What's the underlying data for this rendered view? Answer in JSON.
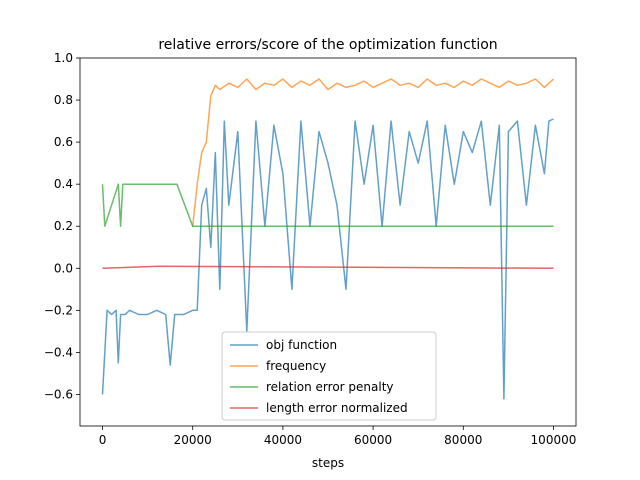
{
  "chart_data": {
    "type": "line",
    "title": "relative errors/score of the optimization function",
    "xlabel": "steps",
    "ylabel": "",
    "xlim": [
      -5000,
      105000
    ],
    "ylim": [
      -0.75,
      1.0
    ],
    "x_ticks": [
      0,
      20000,
      40000,
      60000,
      80000,
      100000
    ],
    "x_tick_labels": [
      "0",
      "20000",
      "40000",
      "60000",
      "80000",
      "100000"
    ],
    "y_ticks": [
      -0.6,
      -0.4,
      -0.2,
      0.0,
      0.2,
      0.4,
      0.6,
      0.8,
      1.0
    ],
    "y_tick_labels": [
      "−0.6",
      "−0.4",
      "−0.2",
      "0.0",
      "0.2",
      "0.4",
      "0.6",
      "0.8",
      "1.0"
    ],
    "grid": false,
    "legend_position": "lower-center",
    "series": [
      {
        "name": "obj function",
        "color": "#1f77b4",
        "x": [
          0,
          500,
          1000,
          2000,
          3000,
          3500,
          4000,
          5000,
          6000,
          8000,
          10000,
          12000,
          14000,
          15000,
          16000,
          18000,
          20000,
          21000,
          22000,
          23000,
          24000,
          25000,
          26000,
          27000,
          28000,
          30000,
          32000,
          34000,
          36000,
          38000,
          40000,
          42000,
          44000,
          46000,
          48000,
          50000,
          52000,
          54000,
          56000,
          58000,
          60000,
          62000,
          64000,
          66000,
          68000,
          70000,
          72000,
          74000,
          76000,
          78000,
          80000,
          82000,
          84000,
          86000,
          88000,
          89000,
          90000,
          92000,
          94000,
          96000,
          98000,
          99000,
          100000
        ],
        "y": [
          -0.6,
          -0.4,
          -0.2,
          -0.22,
          -0.2,
          -0.45,
          -0.22,
          -0.22,
          -0.2,
          -0.22,
          -0.22,
          -0.2,
          -0.22,
          -0.46,
          -0.22,
          -0.22,
          -0.2,
          -0.2,
          0.3,
          0.38,
          0.1,
          0.55,
          -0.1,
          0.7,
          0.3,
          0.65,
          -0.3,
          0.7,
          0.2,
          0.68,
          0.45,
          -0.1,
          0.7,
          0.2,
          0.65,
          0.5,
          0.3,
          -0.1,
          0.7,
          0.4,
          0.68,
          0.2,
          0.7,
          0.3,
          0.65,
          0.5,
          0.7,
          0.2,
          0.68,
          0.4,
          0.65,
          0.55,
          0.7,
          0.3,
          0.68,
          -0.62,
          0.65,
          0.7,
          0.3,
          0.68,
          0.45,
          0.7,
          0.71
        ]
      },
      {
        "name": "frequency",
        "color": "#ff7f0e",
        "x": [
          20000,
          21000,
          22000,
          23000,
          24000,
          25000,
          26000,
          28000,
          30000,
          32000,
          34000,
          36000,
          38000,
          40000,
          42000,
          44000,
          46000,
          48000,
          50000,
          52000,
          54000,
          56000,
          58000,
          60000,
          62000,
          64000,
          66000,
          68000,
          70000,
          72000,
          74000,
          76000,
          78000,
          80000,
          82000,
          84000,
          86000,
          88000,
          90000,
          92000,
          94000,
          96000,
          98000,
          100000
        ],
        "y": [
          0.2,
          0.4,
          0.55,
          0.6,
          0.82,
          0.87,
          0.85,
          0.88,
          0.86,
          0.9,
          0.85,
          0.88,
          0.87,
          0.9,
          0.86,
          0.89,
          0.87,
          0.9,
          0.85,
          0.88,
          0.86,
          0.87,
          0.89,
          0.86,
          0.88,
          0.9,
          0.87,
          0.88,
          0.86,
          0.9,
          0.87,
          0.88,
          0.86,
          0.89,
          0.87,
          0.9,
          0.88,
          0.86,
          0.89,
          0.87,
          0.88,
          0.9,
          0.86,
          0.9
        ]
      },
      {
        "name": "relation error penalty",
        "color": "#2ca02c",
        "x": [
          0,
          500,
          3500,
          4000,
          4500,
          6000,
          14500,
          16500,
          20000,
          100000
        ],
        "y": [
          0.4,
          0.2,
          0.4,
          0.2,
          0.4,
          0.4,
          0.4,
          0.4,
          0.2,
          0.2
        ]
      },
      {
        "name": "length error normalized",
        "color": "#d62728",
        "x": [
          0,
          12500,
          100000
        ],
        "y": [
          0.0,
          0.01,
          0.0
        ]
      }
    ]
  }
}
